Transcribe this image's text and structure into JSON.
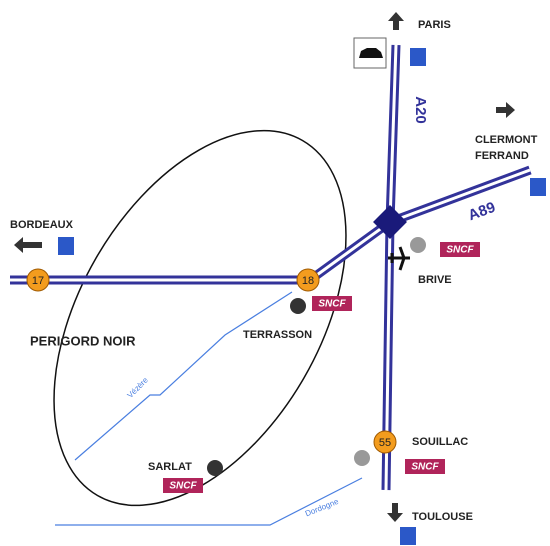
{
  "places": {
    "paris": "PARIS",
    "clermont_1": "CLERMONT",
    "clermont_2": "FERRAND",
    "bordeaux": "BORDEAUX",
    "brive": "BRIVE",
    "terrasson": "TERRASSON",
    "sarlat": "SARLAT",
    "souillac": "SOUILLAC",
    "toulouse": "TOULOUSE",
    "region": "PERIGORD NOIR"
  },
  "roads": {
    "a20": "A20",
    "a89": "A89"
  },
  "rivers": {
    "vezere": "Vézère",
    "dordogne": "Dordogne"
  },
  "exits": [
    "17",
    "18",
    "55"
  ],
  "rail": [
    "SNCF",
    "SNCF",
    "SNCF",
    "SNCF"
  ]
}
